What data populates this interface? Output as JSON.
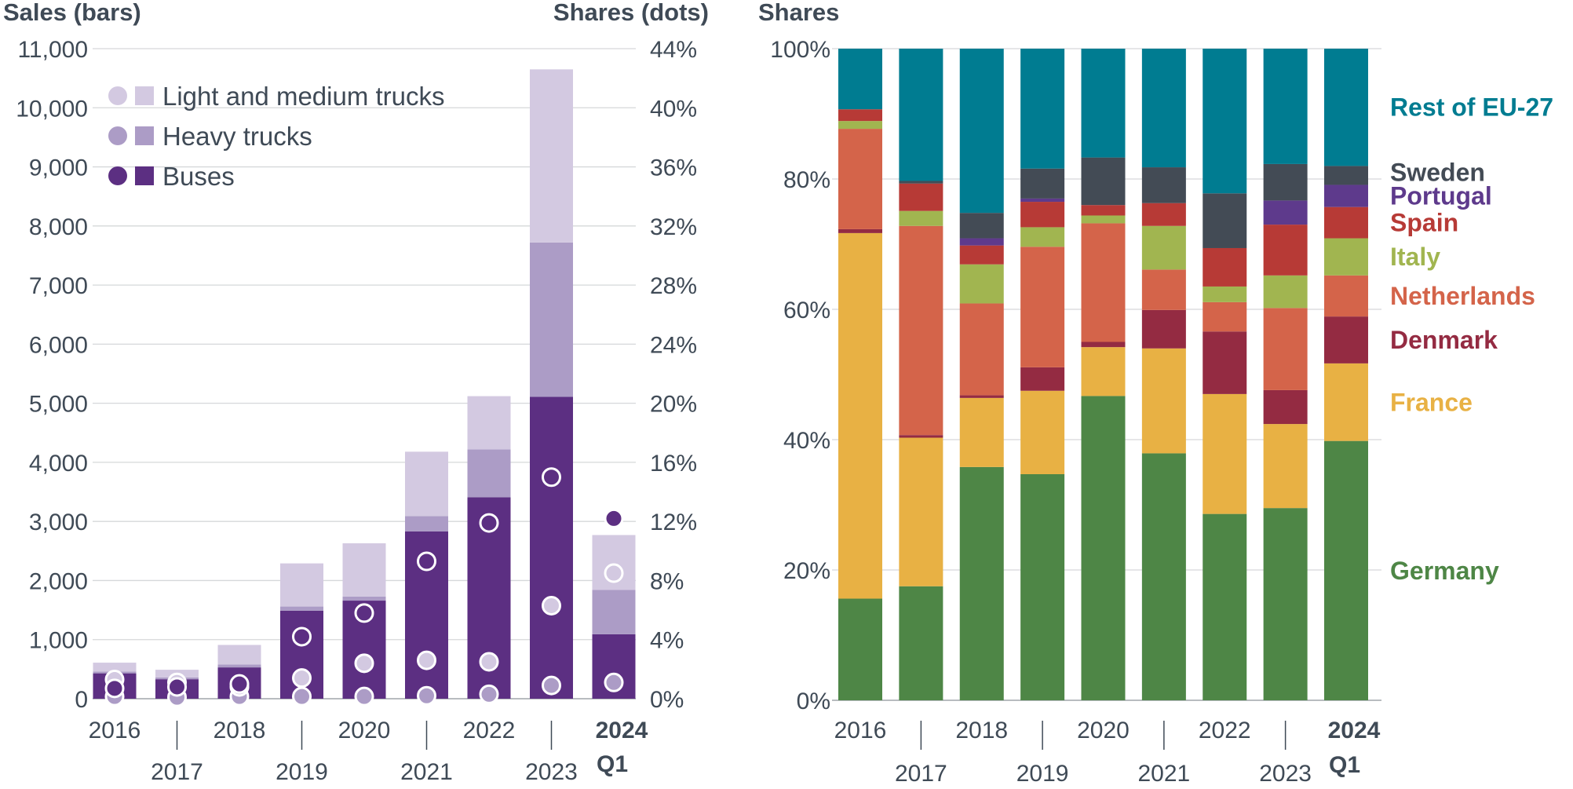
{
  "colors": {
    "light_medium_trucks": "#d3c9e1",
    "heavy_trucks": "#ac9cc6",
    "buses": "#5c2f82",
    "text": "#3f4a56",
    "grid": "#d6d8da"
  },
  "chart_data": [
    {
      "type": "bar",
      "stacked": true,
      "secondary_axis": "scatter",
      "left_axis_title": "Sales (bars)",
      "right_axis_title": "Shares (dots)",
      "categories": [
        "2016",
        "2017",
        "2018",
        "2019",
        "2020",
        "2021",
        "2022",
        "2023",
        "2024 Q1"
      ],
      "category_labels": [
        {
          "line1": "2016",
          "line2": "",
          "bold": false
        },
        {
          "line1": "2017",
          "line2": "",
          "bold": false
        },
        {
          "line1": "2018",
          "line2": "",
          "bold": false
        },
        {
          "line1": "2019",
          "line2": "",
          "bold": false
        },
        {
          "line1": "2020",
          "line2": "",
          "bold": false
        },
        {
          "line1": "2021",
          "line2": "",
          "bold": false
        },
        {
          "line1": "2022",
          "line2": "",
          "bold": false
        },
        {
          "line1": "2023",
          "line2": "",
          "bold": false
        },
        {
          "line1": "2024",
          "line2": "Q1",
          "bold": true
        }
      ],
      "ylim": [
        0,
        11000
      ],
      "yticks": [
        "0",
        "1,000",
        "2,000",
        "3,000",
        "4,000",
        "5,000",
        "6,000",
        "7,000",
        "8,000",
        "9,000",
        "10,000",
        "11,000"
      ],
      "y2lim": [
        0,
        44
      ],
      "y2ticks": [
        "0%",
        "4%",
        "8%",
        "12%",
        "16%",
        "20%",
        "24%",
        "28%",
        "32%",
        "36%",
        "40%",
        "44%"
      ],
      "grid": true,
      "legend_position": "top-left",
      "series": [
        {
          "name": "Buses",
          "key": "buses",
          "sales": [
            430,
            330,
            530,
            1490,
            1660,
            2830,
            3410,
            5110,
            1090
          ],
          "share": [
            0.7,
            0.8,
            1.0,
            4.2,
            5.8,
            9.3,
            11.9,
            15.0,
            12.2
          ]
        },
        {
          "name": "Heavy trucks",
          "key": "heavy_trucks",
          "sales": [
            30,
            30,
            50,
            70,
            70,
            260,
            810,
            2610,
            750
          ],
          "share": [
            0.15,
            0.1,
            0.15,
            0.15,
            0.15,
            0.2,
            0.3,
            0.9,
            1.1
          ]
        },
        {
          "name": "Light and medium trucks",
          "key": "light_medium_trucks",
          "sales": [
            150,
            130,
            330,
            730,
            900,
            1090,
            900,
            2930,
            930
          ],
          "share": [
            1.3,
            1.1,
            0.8,
            1.4,
            2.4,
            2.6,
            2.5,
            6.3,
            8.5
          ]
        }
      ],
      "legend_order": [
        "Light and medium trucks",
        "Heavy trucks",
        "Buses"
      ]
    },
    {
      "type": "bar",
      "stacked": true,
      "percent": true,
      "axis_title": "Shares",
      "categories": [
        "2016",
        "2017",
        "2018",
        "2019",
        "2020",
        "2021",
        "2022",
        "2023",
        "2024 Q1"
      ],
      "ylim": [
        0,
        100
      ],
      "yticks": [
        "0%",
        "20%",
        "40%",
        "60%",
        "80%",
        "100%"
      ],
      "grid": true,
      "legend_position": "right",
      "series": [
        {
          "name": "Germany",
          "color": "#4e8646",
          "values": [
            15.6,
            17.5,
            35.8,
            34.7,
            46.7,
            37.9,
            28.6,
            29.5,
            39.8
          ]
        },
        {
          "name": "France",
          "color": "#e8b144",
          "values": [
            56.1,
            22.8,
            10.6,
            12.8,
            7.5,
            16.1,
            18.4,
            12.9,
            11.9
          ]
        },
        {
          "name": "Denmark",
          "color": "#942b42",
          "values": [
            0.6,
            0.4,
            0.4,
            3.6,
            0.8,
            5.9,
            9.6,
            5.2,
            7.2
          ]
        },
        {
          "name": "Netherlands",
          "color": "#d4644a",
          "values": [
            15.4,
            32.1,
            14.1,
            18.5,
            18.2,
            6.2,
            4.5,
            12.6,
            6.3
          ]
        },
        {
          "name": "Italy",
          "color": "#a1b550",
          "values": [
            1.2,
            2.3,
            6.0,
            3.0,
            1.2,
            6.7,
            2.4,
            5.0,
            5.7
          ]
        },
        {
          "name": "Spain",
          "color": "#b73a36",
          "values": [
            1.8,
            4.2,
            2.9,
            3.9,
            1.6,
            3.5,
            5.9,
            7.8,
            4.8
          ]
        },
        {
          "name": "Portugal",
          "color": "#5e3a8c",
          "values": [
            0,
            0,
            1.1,
            0.5,
            0,
            0,
            0,
            3.7,
            3.4
          ]
        },
        {
          "name": "Sweden",
          "color": "#434b55",
          "values": [
            0,
            0.4,
            3.9,
            4.6,
            7.3,
            5.5,
            8.4,
            5.6,
            2.9
          ]
        },
        {
          "name": "Rest of EU-27",
          "color": "#007c91",
          "values": [
            9.3,
            20.3,
            25.2,
            18.4,
            16.7,
            18.2,
            22.2,
            17.7,
            18.0
          ]
        }
      ]
    }
  ]
}
